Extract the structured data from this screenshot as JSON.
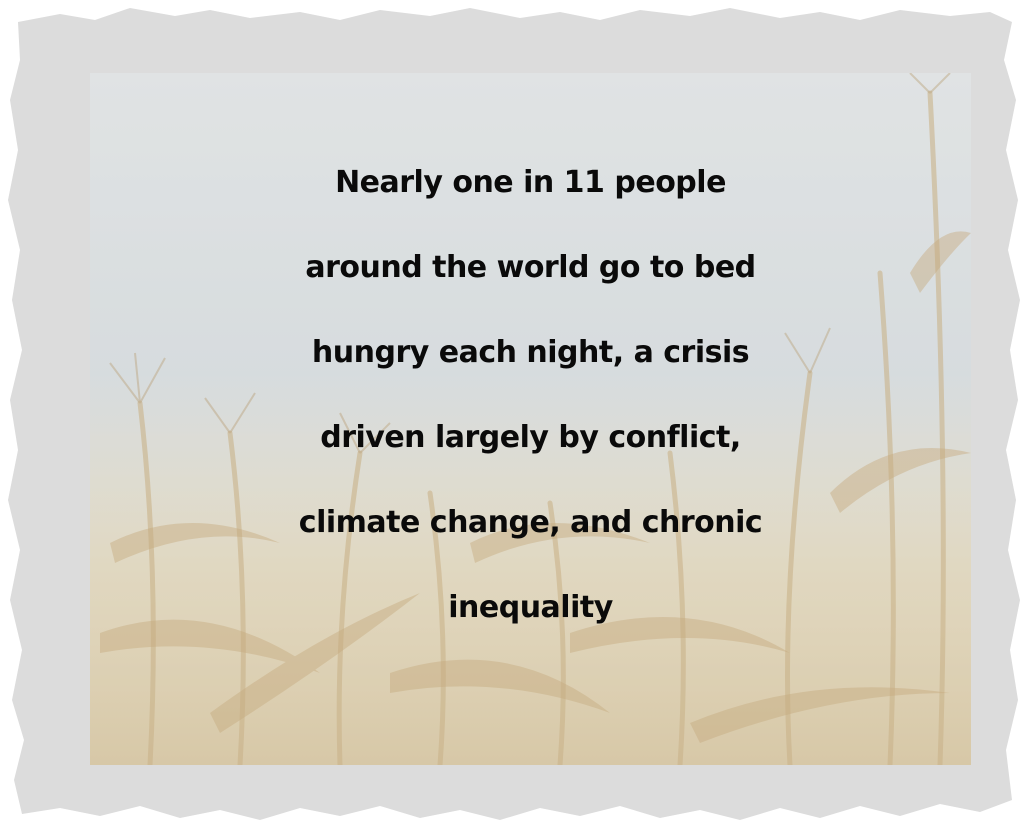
{
  "colors": {
    "frame": "#dcdcdc",
    "sky": "#c9d0d3",
    "text": "#0a0a0a",
    "crop_stalks": "#b89a63"
  },
  "decorations": {
    "background_photo": "cornfield-photo",
    "border": "torn-paper-frame"
  },
  "quote": {
    "lines": [
      "Nearly one in 11 people",
      "around the world go to bed",
      "hungry each night, a crisis",
      "driven largely by conflict,",
      "climate change, and chronic",
      "inequality"
    ]
  }
}
